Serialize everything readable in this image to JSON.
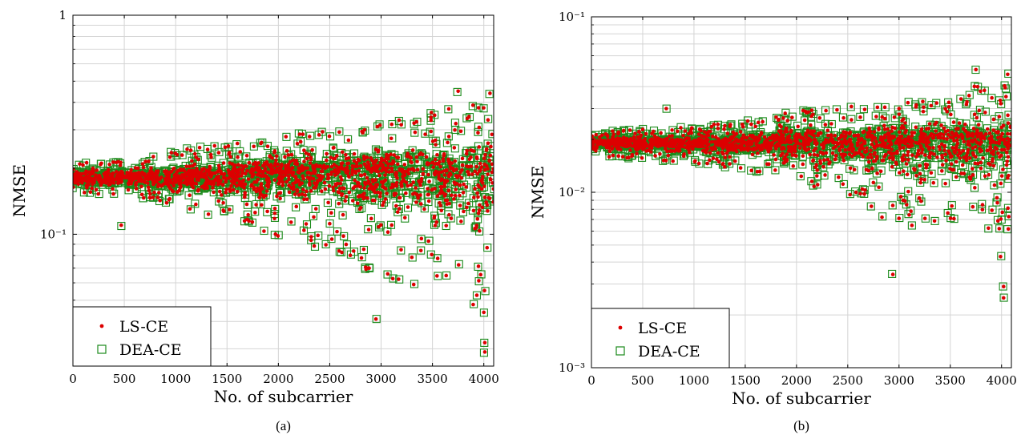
{
  "chart_data": [
    {
      "type": "scatter",
      "panel_label": "(a)",
      "xlabel": "No. of subcarrier",
      "ylabel": "NMSE",
      "xlim": [
        0,
        4096
      ],
      "ylim": [
        0.025,
        1
      ],
      "yscale": "log",
      "xticks": [
        0,
        500,
        1000,
        1500,
        2000,
        2500,
        3000,
        3500,
        4000
      ],
      "xtick_labels": [
        "0",
        "500",
        "1000",
        "1500",
        "2000",
        "2500",
        "3000",
        "3500",
        "4000"
      ],
      "yticks": [
        0.1,
        1
      ],
      "ytick_labels": [
        "10⁻¹",
        "1"
      ],
      "grid": true,
      "legend_position": "bottom-left",
      "series": [
        {
          "name": "LS-CE",
          "marker": "dot",
          "color": "#dd0000"
        },
        {
          "name": "DEA-CE",
          "marker": "open-square",
          "color": "#1a8a1a"
        }
      ],
      "trend": {
        "x": [
          0,
          500,
          1000,
          1500,
          2000,
          2500,
          3000,
          3500,
          4000,
          4096
        ],
        "center": [
          0.18,
          0.18,
          0.18,
          0.18,
          0.19,
          0.19,
          0.19,
          0.19,
          0.19,
          0.19
        ],
        "upper": [
          0.21,
          0.22,
          0.24,
          0.26,
          0.28,
          0.3,
          0.34,
          0.38,
          0.44,
          0.46
        ],
        "lower": [
          0.155,
          0.15,
          0.135,
          0.115,
          0.095,
          0.085,
          0.06,
          0.05,
          0.045,
          0.045
        ]
      },
      "outliers": [
        {
          "x": 470,
          "y": 0.11
        },
        {
          "x": 2950,
          "y": 0.041
        },
        {
          "x": 4010,
          "y": 0.032
        },
        {
          "x": 4010,
          "y": 0.029
        },
        {
          "x": 4000,
          "y": 0.044
        },
        {
          "x": 3750,
          "y": 0.45
        },
        {
          "x": 4060,
          "y": 0.44
        }
      ]
    },
    {
      "type": "scatter",
      "panel_label": "(b)",
      "xlabel": "No. of subcarrier",
      "ylabel": "NMSE",
      "xlim": [
        0,
        4096
      ],
      "ylim": [
        0.001,
        0.1
      ],
      "yscale": "log",
      "xticks": [
        0,
        500,
        1000,
        1500,
        2000,
        2500,
        3000,
        3500,
        4000
      ],
      "xtick_labels": [
        "0",
        "500",
        "1000",
        "1500",
        "2000",
        "2500",
        "3000",
        "3500",
        "4000"
      ],
      "yticks": [
        0.001,
        0.01,
        0.1
      ],
      "ytick_labels": [
        "10⁻³",
        "10⁻²",
        "10⁻¹"
      ],
      "grid": true,
      "legend_position": "bottom-left",
      "series": [
        {
          "name": "LS-CE",
          "marker": "dot",
          "color": "#dd0000"
        },
        {
          "name": "DEA-CE",
          "marker": "open-square",
          "color": "#1a8a1a"
        }
      ],
      "trend": {
        "x": [
          0,
          500,
          1000,
          1500,
          2000,
          2500,
          3000,
          3500,
          4000,
          4096
        ],
        "center": [
          0.019,
          0.019,
          0.019,
          0.019,
          0.019,
          0.019,
          0.019,
          0.019,
          0.019,
          0.019
        ],
        "upper": [
          0.022,
          0.023,
          0.024,
          0.026,
          0.029,
          0.031,
          0.034,
          0.038,
          0.043,
          0.045
        ],
        "lower": [
          0.016,
          0.0155,
          0.0145,
          0.0135,
          0.011,
          0.0085,
          0.0065,
          0.006,
          0.0055,
          0.0055
        ]
      },
      "outliers": [
        {
          "x": 2940,
          "y": 0.0034
        },
        {
          "x": 4020,
          "y": 0.0029
        },
        {
          "x": 4020,
          "y": 0.0025
        },
        {
          "x": 3990,
          "y": 0.0043
        },
        {
          "x": 3750,
          "y": 0.05
        },
        {
          "x": 4060,
          "y": 0.047
        },
        {
          "x": 730,
          "y": 0.03
        }
      ]
    }
  ]
}
